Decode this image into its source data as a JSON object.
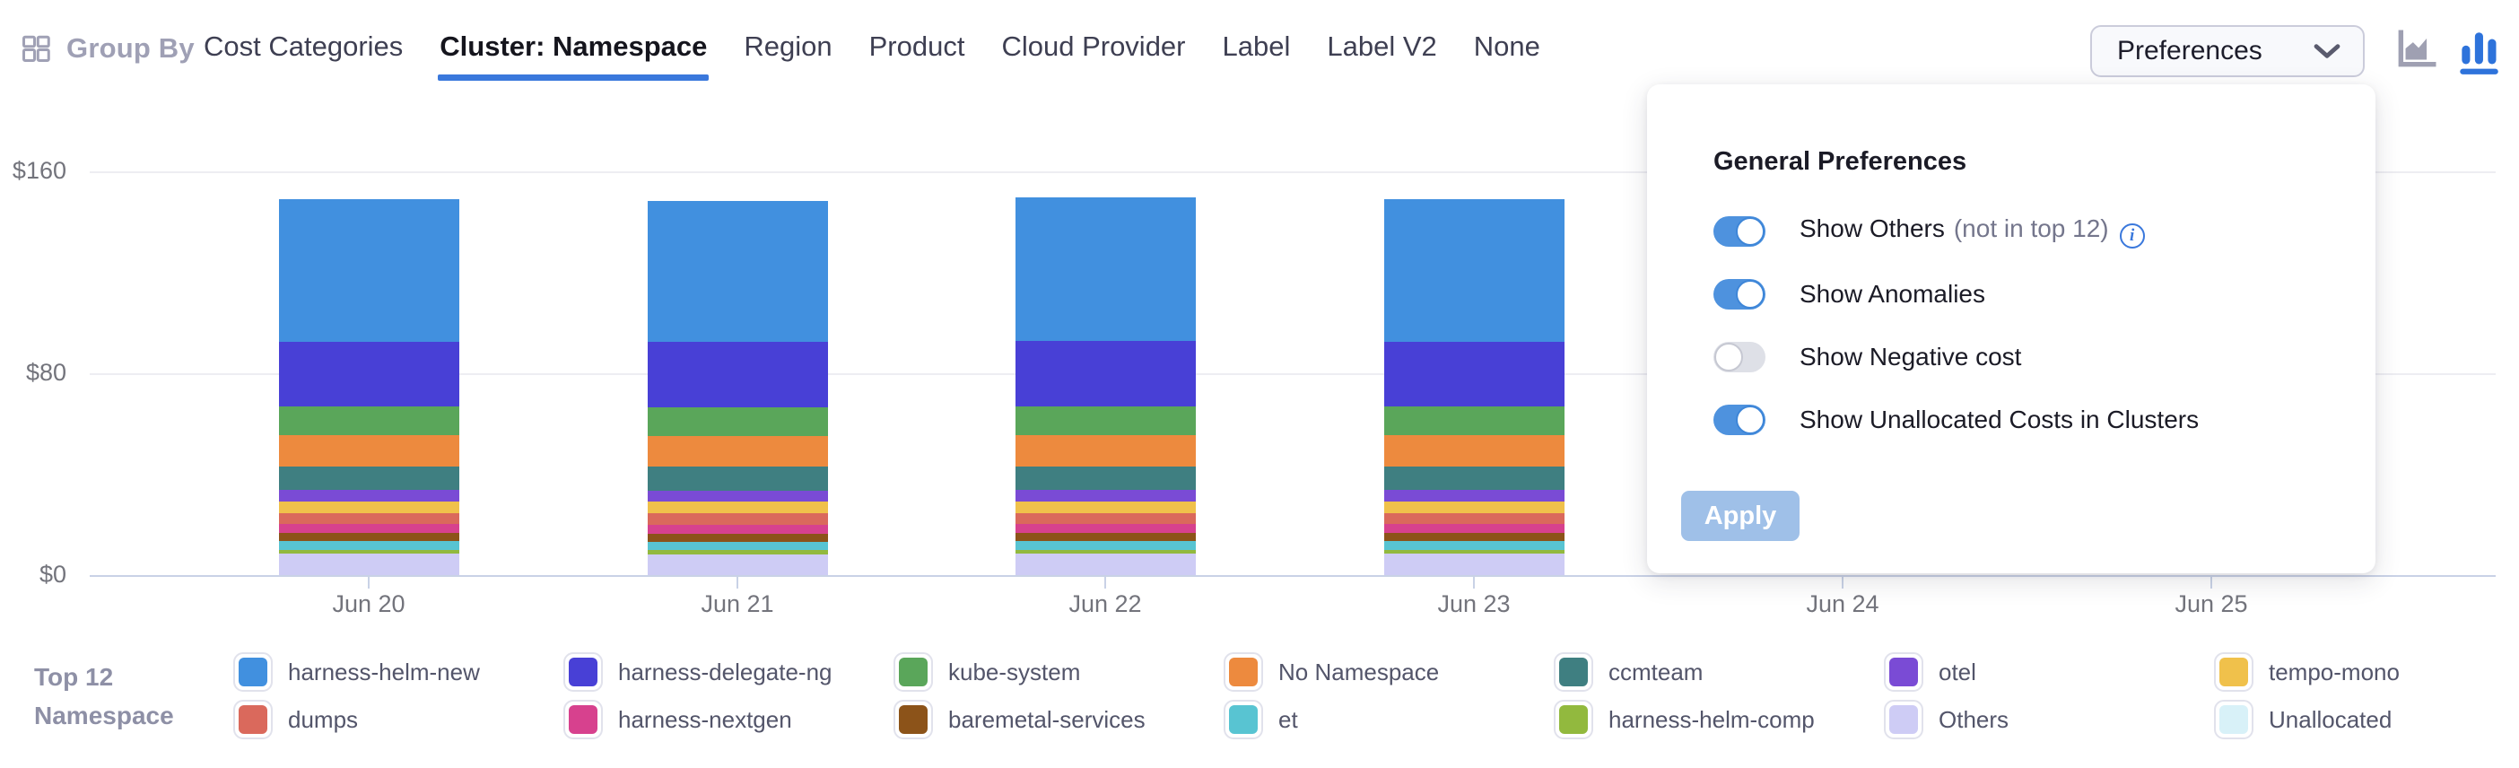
{
  "header": {
    "group_by_label": "Group By",
    "tabs": [
      {
        "label": "Cost Categories",
        "active": false
      },
      {
        "label": "Cluster: Namespace",
        "active": true
      },
      {
        "label": "Region",
        "active": false
      },
      {
        "label": "Product",
        "active": false
      },
      {
        "label": "Cloud Provider",
        "active": false
      },
      {
        "label": "Label",
        "active": false
      },
      {
        "label": "Label V2",
        "active": false
      },
      {
        "label": "None",
        "active": false
      }
    ],
    "preferences_button_label": "Preferences",
    "chart_type_toggle": {
      "icons": [
        "area-chart-icon",
        "bar-chart-icon"
      ],
      "active": "bar-chart-icon",
      "active_color": "#2E73DB",
      "inactive_color": "#9FA0B2"
    }
  },
  "preferences_panel": {
    "title": "General Preferences",
    "toggles": [
      {
        "label": "Show Others",
        "hint": "(not in top 12)",
        "info_icon": true,
        "on": true
      },
      {
        "label": "Show Anomalies",
        "hint": "",
        "info_icon": false,
        "on": true
      },
      {
        "label": "Show Negative cost",
        "hint": "",
        "info_icon": false,
        "on": false
      },
      {
        "label": "Show Unallocated Costs in Clusters",
        "hint": "",
        "info_icon": false,
        "on": true
      }
    ],
    "apply_label": "Apply"
  },
  "legend": {
    "title_line1": "Top 12",
    "title_line2": "Namespace"
  },
  "chart_data": {
    "type": "bar",
    "stacked": true,
    "title": "",
    "xlabel": "",
    "ylabel": "",
    "ylim": [
      0,
      160
    ],
    "y_axis": [
      {
        "label": "$0",
        "value": 0
      },
      {
        "label": "$80",
        "value": 80
      },
      {
        "label": "$160",
        "value": 160
      }
    ],
    "categories": [
      "Jun 20",
      "Jun 21",
      "Jun 22",
      "Jun 23",
      "Jun 24",
      "Jun 25"
    ],
    "note": "Bars for Jun 24 and Jun 25 are hidden behind the open Preferences panel",
    "grid": true,
    "legend_position": "bottom",
    "stack_order_bottom_to_top": [
      "Unallocated",
      "Others",
      "harness-helm-comp",
      "et",
      "baremetal-services",
      "harness-nextgen",
      "dumps",
      "tempo-mono",
      "otel",
      "ccmteam",
      "No Namespace",
      "kube-system",
      "harness-delegate-ng",
      "harness-helm-new"
    ],
    "series": [
      {
        "name": "harness-helm-new",
        "color": "#4190DF",
        "values": [
          56.5,
          56.0,
          56.9,
          56.4,
          null,
          null
        ]
      },
      {
        "name": "harness-delegate-ng",
        "color": "#4840D6",
        "values": [
          25.8,
          25.7,
          25.9,
          25.8,
          null,
          null
        ]
      },
      {
        "name": "kube-system",
        "color": "#5AA65A",
        "values": [
          11.3,
          11.4,
          11.3,
          11.3,
          null,
          null
        ]
      },
      {
        "name": "No Namespace",
        "color": "#ED8A3E",
        "values": [
          12.4,
          12.3,
          12.5,
          12.4,
          null,
          null
        ]
      },
      {
        "name": "ccmteam",
        "color": "#3F7F81",
        "values": [
          9.2,
          9.3,
          9.2,
          9.2,
          null,
          null
        ]
      },
      {
        "name": "otel",
        "color": "#7A4BD5",
        "values": [
          4.7,
          4.6,
          4.7,
          4.7,
          null,
          null
        ]
      },
      {
        "name": "tempo-mono",
        "color": "#F0C14B",
        "values": [
          4.6,
          4.6,
          4.6,
          4.5,
          null,
          null
        ]
      },
      {
        "name": "dumps",
        "color": "#DA695C",
        "values": [
          4.3,
          4.4,
          4.3,
          4.3,
          null,
          null
        ]
      },
      {
        "name": "harness-nextgen",
        "color": "#D7418E",
        "values": [
          3.6,
          3.5,
          3.6,
          3.6,
          null,
          null
        ]
      },
      {
        "name": "baremetal-services",
        "color": "#8C5319",
        "values": [
          3.2,
          3.2,
          3.2,
          3.2,
          null,
          null
        ]
      },
      {
        "name": "et",
        "color": "#58C4D2",
        "values": [
          3.4,
          3.4,
          3.4,
          3.4,
          null,
          null
        ]
      },
      {
        "name": "harness-helm-comp",
        "color": "#92B93E",
        "values": [
          1.6,
          1.6,
          1.6,
          1.6,
          null,
          null
        ]
      },
      {
        "name": "Others",
        "color": "#CECCF5",
        "values": [
          8.5,
          8.3,
          8.4,
          8.5,
          null,
          null
        ]
      },
      {
        "name": "Unallocated",
        "color": "#D8F1F8",
        "values": [
          0,
          0,
          0,
          0,
          null,
          null
        ]
      }
    ]
  }
}
